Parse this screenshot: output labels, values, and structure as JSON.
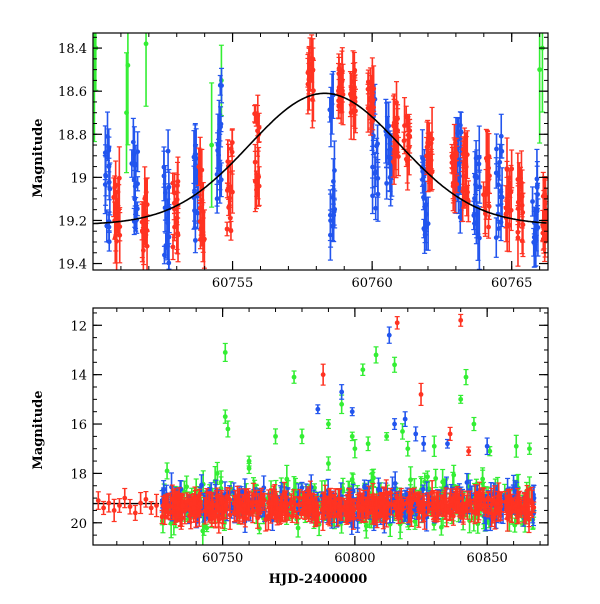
{
  "colors": {
    "green": "#33ee33",
    "blue": "#2255ee",
    "red": "#ff3322",
    "model": "#000000"
  },
  "chart_data": [
    {
      "type": "scatter",
      "panel": "top",
      "title": "",
      "xlabel": "",
      "ylabel": "Magnitude",
      "xlim": [
        60750.0,
        60766.3
      ],
      "ylim": [
        19.43,
        18.33
      ],
      "y_inverted": true,
      "xticks": [
        60755,
        60760,
        60765
      ],
      "xtick_labels": [
        "60755",
        "60760",
        "60765"
      ],
      "yticks": [
        18.4,
        18.6,
        18.8,
        19,
        19.2,
        19.4
      ],
      "ytick_labels": [
        "18.4",
        "18.6",
        "18.8",
        "19",
        "19.2",
        "19.4"
      ],
      "model_curve": {
        "peak_x": 60758.3,
        "peak_mag": 18.61,
        "baseline_mag": 19.22,
        "width_days": 2.7,
        "style": "solid black line"
      },
      "series": [
        {
          "color": "green",
          "points": [
            [
              60750.05,
              18.55
            ],
            [
              60750.1,
              18.4
            ],
            [
              60751.2,
              18.7
            ],
            [
              60751.25,
              18.48
            ],
            [
              60751.9,
              18.38
            ],
            [
              60754.25,
              18.85
            ],
            [
              60754.6,
              18.55
            ],
            [
              60766.0,
              18.5
            ],
            [
              60766.1,
              18.4
            ]
          ]
        },
        {
          "color": "blue",
          "clusters": [
            [
              60750.5,
              18.75,
              19.4
            ],
            [
              60751.5,
              18.75,
              19.4
            ],
            [
              60752.65,
              18.8,
              19.4
            ],
            [
              60753.7,
              18.85,
              19.3
            ],
            [
              60754.5,
              18.55,
              19.3
            ],
            [
              60758.55,
              18.6,
              19.3
            ],
            [
              60760.1,
              18.6,
              19.2
            ],
            [
              60760.6,
              18.75,
              19.1
            ],
            [
              60761.9,
              18.9,
              19.3
            ],
            [
              60763.1,
              18.75,
              19.25
            ],
            [
              60763.75,
              18.8,
              19.3
            ],
            [
              60764.55,
              18.8,
              19.3
            ],
            [
              60765.85,
              19.0,
              19.35
            ]
          ]
        },
        {
          "color": "red",
          "clusters": [
            [
              60750.85,
              19.0,
              19.3
            ],
            [
              60751.85,
              19.05,
              19.35
            ],
            [
              60752.95,
              19.0,
              19.35
            ],
            [
              60753.9,
              18.95,
              19.35
            ],
            [
              60754.9,
              18.8,
              19.3
            ],
            [
              60755.9,
              18.7,
              19.1
            ],
            [
              60757.8,
              18.4,
              18.65
            ],
            [
              60758.9,
              18.45,
              18.7
            ],
            [
              60759.3,
              18.5,
              18.7
            ],
            [
              60759.95,
              18.55,
              18.75
            ],
            [
              60760.85,
              18.65,
              18.95
            ],
            [
              60761.25,
              18.7,
              18.95
            ],
            [
              60762.05,
              18.75,
              19.0
            ],
            [
              60762.95,
              18.8,
              19.05
            ],
            [
              60763.35,
              18.85,
              19.2
            ],
            [
              60764.1,
              18.9,
              19.25
            ],
            [
              60764.9,
              18.95,
              19.25
            ],
            [
              60765.3,
              19.0,
              19.3
            ],
            [
              60766.2,
              19.05,
              19.3
            ]
          ]
        }
      ]
    },
    {
      "type": "scatter",
      "panel": "bottom",
      "title": "",
      "xlabel": "HJD-2400000",
      "ylabel": "Magnitude",
      "xlim": [
        60701,
        60873
      ],
      "ylim": [
        20.9,
        11.3
      ],
      "y_inverted": true,
      "xticks": [
        60750,
        60800,
        60850
      ],
      "xtick_labels": [
        "60750",
        "60800",
        "60850"
      ],
      "yticks": [
        12,
        14,
        16,
        18,
        20
      ],
      "ytick_labels": [
        "12",
        "14",
        "16",
        "18",
        "20"
      ],
      "baseline_line": {
        "x_from": 60701,
        "x_to": 60726,
        "mag": 19.22
      },
      "series": [
        {
          "color": "green",
          "outliers": [
            [
              60751,
              13.1
            ],
            [
              60751,
              15.7
            ],
            [
              60752,
              16.2
            ],
            [
              60760,
              17.5
            ],
            [
              60770,
              16.5
            ],
            [
              60777,
              14.1
            ],
            [
              60780,
              16.5
            ],
            [
              60790,
              16.0
            ],
            [
              60795,
              15.2
            ],
            [
              60799,
              16.5
            ],
            [
              60800,
              17.0
            ],
            [
              60803,
              13.8
            ],
            [
              60805,
              16.8
            ],
            [
              60808,
              13.2
            ],
            [
              60812,
              16.5
            ],
            [
              60815,
              13.6
            ],
            [
              60818,
              16.3
            ],
            [
              60820,
              17.0
            ],
            [
              60830,
              16.9
            ],
            [
              60840,
              15.0
            ],
            [
              60842,
              14.1
            ],
            [
              60845,
              16.0
            ],
            [
              60851,
              17.1
            ],
            [
              60861,
              16.9
            ],
            [
              60866,
              17.0
            ],
            [
              60729,
              17.9
            ],
            [
              60748,
              18.0
            ],
            [
              60760,
              17.8
            ],
            [
              60790,
              17.6
            ]
          ],
          "band_range": [
            60727,
            60868
          ],
          "band_mag": [
            17.8,
            20.6
          ]
        },
        {
          "color": "blue",
          "outliers": [
            [
              60786,
              15.4
            ],
            [
              60795,
              14.7
            ],
            [
              60799,
              15.5
            ],
            [
              60813,
              12.4
            ],
            [
              60815,
              16.0
            ],
            [
              60819,
              15.8
            ],
            [
              60823,
              16.4
            ],
            [
              60826,
              16.8
            ],
            [
              60835,
              16.8
            ],
            [
              60850,
              16.9
            ]
          ],
          "band_range": [
            60727,
            60868
          ],
          "band_mag": [
            18.2,
            20.2
          ]
        },
        {
          "color": "red",
          "outliers": [
            [
              60816,
              11.9
            ],
            [
              60840,
              11.8
            ],
            [
              60788,
              14.0
            ],
            [
              60825,
              14.8
            ],
            [
              60836,
              16.4
            ],
            [
              60843,
              17.1
            ]
          ],
          "early": [
            [
              60703,
              19.1
            ],
            [
              60705,
              19.4
            ],
            [
              60707,
              19.2
            ],
            [
              60709,
              19.5
            ],
            [
              60711,
              19.3
            ],
            [
              60713,
              19.0
            ],
            [
              60715,
              19.35
            ],
            [
              60717,
              19.6
            ],
            [
              60719,
              19.2
            ],
            [
              60721,
              19.05
            ],
            [
              60723,
              19.4
            ],
            [
              60725,
              19.3
            ]
          ],
          "band_range": [
            60727,
            60868
          ],
          "band_mag": [
            18.7,
            20.0
          ]
        }
      ]
    }
  ]
}
